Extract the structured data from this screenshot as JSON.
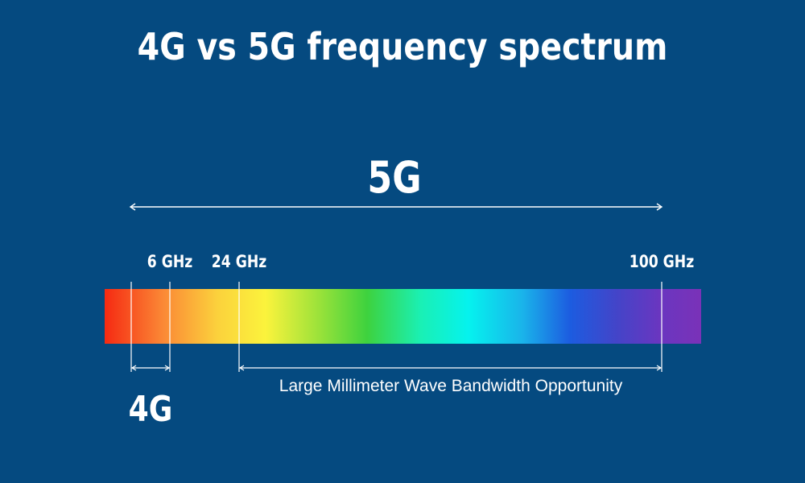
{
  "title": "4G vs 5G frequency spectrum",
  "diagram": {
    "range_5g_label": "5G",
    "range_4g_label": "4G",
    "mmwave_label": "Large Millimeter Wave Bandwidth Opportunity",
    "markers": [
      {
        "id": "6ghz",
        "label": "6 GHz"
      },
      {
        "id": "24ghz",
        "label": "24 GHz"
      },
      {
        "id": "100ghz",
        "label": "100 GHz"
      }
    ],
    "colors": {
      "background": "#054a80",
      "text": "#ffffff",
      "spectrum": [
        "#f52a12",
        "#fb8a36",
        "#fbd23c",
        "#fbf33c",
        "#9ae23a",
        "#3ed23e",
        "#1af0b4",
        "#05f2ee",
        "#1ab4ea",
        "#1c5ce0",
        "#4444c8",
        "#6a36c0",
        "#7a32b8"
      ]
    }
  }
}
